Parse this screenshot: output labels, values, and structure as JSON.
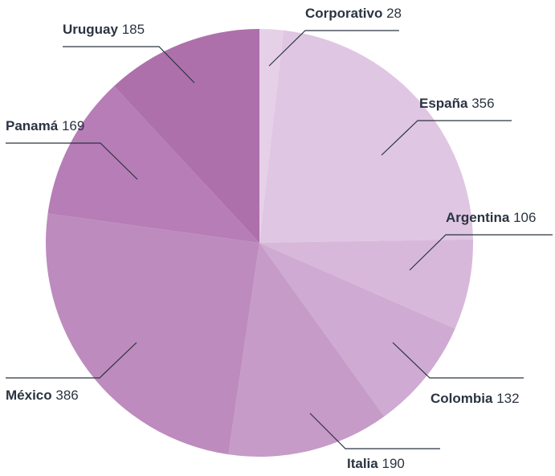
{
  "chart_data": {
    "type": "pie",
    "categories": [
      "Corporativo",
      "España",
      "Argentina",
      "Colombia",
      "Italia",
      "México",
      "Panamá",
      "Uruguay"
    ],
    "values": [
      28,
      356,
      106,
      132,
      190,
      386,
      169,
      185
    ],
    "colors": [
      "#e6d0e8",
      "#dfc6e2",
      "#d8b8da",
      "#cfaad2",
      "#c69bc8",
      "#bd8bbd",
      "#b67db6",
      "#ae70ab"
    ]
  }
}
